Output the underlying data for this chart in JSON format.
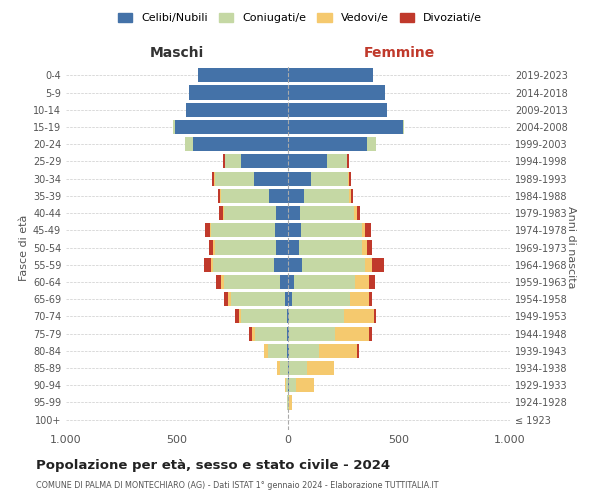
{
  "age_groups": [
    "100+",
    "95-99",
    "90-94",
    "85-89",
    "80-84",
    "75-79",
    "70-74",
    "65-69",
    "60-64",
    "55-59",
    "50-54",
    "45-49",
    "40-44",
    "35-39",
    "30-34",
    "25-29",
    "20-24",
    "15-19",
    "10-14",
    "5-9",
    "0-4"
  ],
  "birth_years": [
    "≤ 1923",
    "1924-1928",
    "1929-1933",
    "1934-1938",
    "1939-1943",
    "1944-1948",
    "1949-1953",
    "1954-1958",
    "1959-1963",
    "1964-1968",
    "1969-1973",
    "1974-1978",
    "1979-1983",
    "1984-1988",
    "1989-1993",
    "1994-1998",
    "1999-2003",
    "2004-2008",
    "2009-2013",
    "2014-2018",
    "2019-2023"
  ],
  "males_celibe": [
    0,
    0,
    0,
    2,
    3,
    5,
    5,
    12,
    35,
    65,
    55,
    60,
    55,
    85,
    155,
    210,
    430,
    510,
    460,
    445,
    405
  ],
  "males_coniugato": [
    0,
    3,
    8,
    35,
    85,
    145,
    205,
    245,
    255,
    275,
    275,
    285,
    235,
    215,
    175,
    75,
    32,
    6,
    0,
    0,
    0
  ],
  "males_vedovo": [
    0,
    0,
    5,
    12,
    22,
    12,
    12,
    12,
    12,
    6,
    6,
    5,
    5,
    5,
    5,
    0,
    0,
    0,
    0,
    0,
    0
  ],
  "males_divorziato": [
    0,
    0,
    0,
    0,
    0,
    12,
    18,
    18,
    22,
    32,
    22,
    22,
    17,
    12,
    6,
    6,
    0,
    0,
    0,
    0,
    0
  ],
  "females_nubile": [
    0,
    0,
    3,
    5,
    5,
    6,
    6,
    16,
    28,
    62,
    48,
    58,
    52,
    72,
    105,
    175,
    355,
    520,
    445,
    435,
    385
  ],
  "females_coniugata": [
    0,
    6,
    32,
    82,
    135,
    205,
    245,
    265,
    275,
    285,
    285,
    275,
    245,
    205,
    165,
    92,
    42,
    2,
    0,
    0,
    0
  ],
  "females_vedova": [
    0,
    12,
    82,
    122,
    172,
    155,
    135,
    82,
    62,
    32,
    22,
    12,
    12,
    6,
    6,
    0,
    0,
    0,
    0,
    0,
    0
  ],
  "females_divorziata": [
    0,
    0,
    0,
    0,
    6,
    12,
    12,
    17,
    28,
    52,
    22,
    27,
    17,
    12,
    6,
    6,
    0,
    0,
    0,
    0,
    0
  ],
  "colors": {
    "celibe": "#4472a8",
    "coniugato": "#c5d8a4",
    "vedovo": "#f5c96e",
    "divorziato": "#c0392b"
  },
  "legend_labels": [
    "Celibi/Nubili",
    "Coniugati/e",
    "Vedovi/e",
    "Divoziati/e"
  ],
  "title": "Popolazione per età, sesso e stato civile - 2024",
  "subtitle": "COMUNE DI PALMA DI MONTECHIARO (AG) - Dati ISTAT 1° gennaio 2024 - Elaborazione TUTTITALIA.IT",
  "ylabel": "Fasce di età",
  "xlabel_right": "Anni di nascita",
  "xlim": 1000,
  "maschi_label": "Maschi",
  "femmine_label": "Femmine",
  "maschi_color": "#333333",
  "femmine_color": "#c0392b",
  "bg_color": "#ffffff"
}
